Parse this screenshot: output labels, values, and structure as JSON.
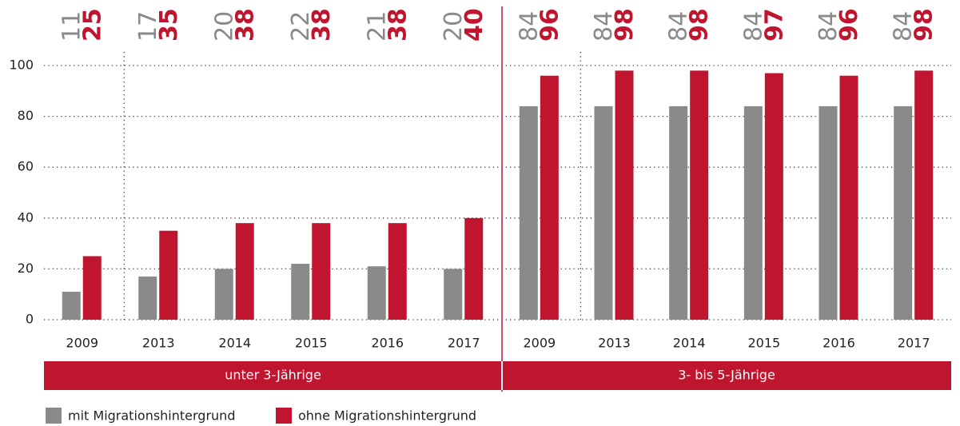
{
  "chart_data": {
    "type": "bar",
    "groups": [
      {
        "name": "unter 3-Jährige",
        "categories": [
          "2009",
          "2013",
          "2014",
          "2015",
          "2016",
          "2017"
        ]
      },
      {
        "name": "3- bis 5-Jährige",
        "categories": [
          "2009",
          "2013",
          "2014",
          "2015",
          "2016",
          "2017"
        ]
      }
    ],
    "series": [
      {
        "name": "mit Migrationshintergrund",
        "color": "#8a8a89",
        "values": [
          11,
          17,
          20,
          22,
          21,
          20,
          84,
          84,
          84,
          84,
          84,
          84
        ]
      },
      {
        "name": "ohne Migrationshintergrund",
        "color": "#c0152f",
        "values": [
          25,
          35,
          38,
          38,
          38,
          40,
          96,
          98,
          98,
          97,
          96,
          98
        ]
      }
    ],
    "ylim": [
      0,
      100
    ],
    "yticks": [
      0,
      20,
      40,
      60,
      80,
      100
    ],
    "grid": true
  }
}
